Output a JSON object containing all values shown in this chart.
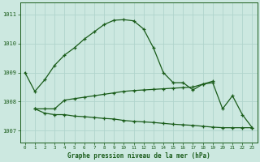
{
  "bg_color": "#cce8e0",
  "grid_color": "#b0d4cc",
  "line_color": "#1a5c1a",
  "title": "Graphe pression niveau de la mer (hPa)",
  "ylim": [
    1006.6,
    1011.4
  ],
  "xlim": [
    -0.5,
    23.5
  ],
  "yticks": [
    1007,
    1008,
    1009,
    1010,
    1011
  ],
  "xticks": [
    0,
    1,
    2,
    3,
    4,
    5,
    6,
    7,
    8,
    9,
    10,
    11,
    12,
    13,
    14,
    15,
    16,
    17,
    18,
    19,
    20,
    21,
    22,
    23
  ],
  "line1_x": [
    0,
    1,
    2,
    3,
    4,
    5,
    6,
    7,
    8,
    9,
    10,
    11,
    12,
    13,
    14,
    15,
    16,
    17,
    18,
    19
  ],
  "line1_y": [
    1009.0,
    1008.35,
    1008.75,
    1009.25,
    1009.6,
    1009.85,
    1010.15,
    1010.4,
    1010.65,
    1010.8,
    1010.82,
    1010.78,
    1010.5,
    1009.85,
    1009.0,
    1008.65,
    1008.65,
    1008.4,
    1008.6,
    1008.7
  ],
  "line2_x": [
    1,
    2,
    3,
    4,
    5,
    6,
    7,
    8,
    9,
    10,
    11,
    12,
    13,
    14,
    15,
    16,
    17,
    18,
    19,
    20,
    21,
    22,
    23
  ],
  "line2_y": [
    1007.75,
    1007.75,
    1007.75,
    1008.05,
    1008.1,
    1008.15,
    1008.2,
    1008.25,
    1008.3,
    1008.35,
    1008.38,
    1008.4,
    1008.42,
    1008.44,
    1008.46,
    1008.48,
    1008.5,
    1008.6,
    1008.65,
    1007.75,
    1008.2,
    1007.55,
    1007.1
  ],
  "line3_x": [
    1,
    2,
    3,
    4,
    5,
    6,
    7,
    8,
    9,
    10,
    11,
    12,
    13,
    14,
    15,
    16,
    17,
    18,
    19,
    20,
    21,
    22,
    23
  ],
  "line3_y": [
    1007.75,
    1007.6,
    1007.55,
    1007.55,
    1007.5,
    1007.48,
    1007.45,
    1007.42,
    1007.4,
    1007.35,
    1007.32,
    1007.3,
    1007.28,
    1007.25,
    1007.22,
    1007.2,
    1007.18,
    1007.15,
    1007.12,
    1007.1,
    1007.1,
    1007.1,
    1007.1
  ]
}
